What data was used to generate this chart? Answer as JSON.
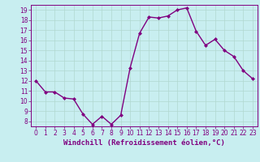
{
  "x": [
    0,
    1,
    2,
    3,
    4,
    5,
    6,
    7,
    8,
    9,
    10,
    11,
    12,
    13,
    14,
    15,
    16,
    17,
    18,
    19,
    20,
    21,
    22,
    23
  ],
  "y": [
    12.0,
    10.9,
    10.9,
    10.3,
    10.2,
    8.7,
    7.7,
    8.5,
    7.7,
    8.6,
    13.3,
    16.7,
    18.3,
    18.2,
    18.4,
    19.0,
    19.2,
    16.9,
    15.5,
    16.1,
    15.0,
    14.4,
    13.0,
    12.2
  ],
  "line_color": "#800080",
  "marker": "D",
  "marker_size": 2,
  "linewidth": 1.0,
  "xlabel": "Windchill (Refroidissement éolien,°C)",
  "xlim": [
    -0.5,
    23.5
  ],
  "ylim": [
    7.5,
    19.5
  ],
  "yticks": [
    8,
    9,
    10,
    11,
    12,
    13,
    14,
    15,
    16,
    17,
    18,
    19
  ],
  "xticks": [
    0,
    1,
    2,
    3,
    4,
    5,
    6,
    7,
    8,
    9,
    10,
    11,
    12,
    13,
    14,
    15,
    16,
    17,
    18,
    19,
    20,
    21,
    22,
    23
  ],
  "bg_color": "#c8eef0",
  "grid_color": "#b0d8d0",
  "line_border_color": "#800080",
  "tick_fontsize": 5.5,
  "xlabel_fontsize": 6.5
}
